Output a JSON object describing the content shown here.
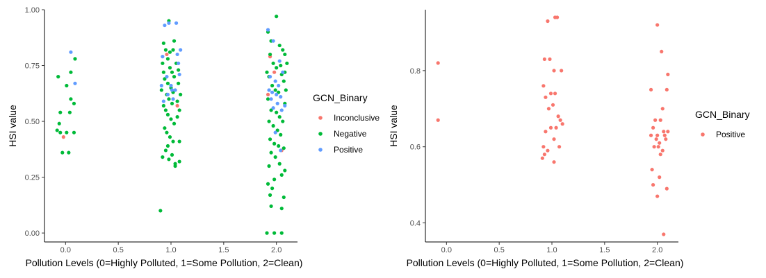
{
  "chart_data": [
    {
      "type": "scatter",
      "title": "",
      "xlabel": "Pollution Levels (0=Highly Polluted, 1=Some Pollution, 2=Clean)",
      "ylabel": "HSI value",
      "xlim": [
        -0.2,
        2.2
      ],
      "ylim": [
        -0.04,
        1.0
      ],
      "x_ticks": [
        "0.0",
        "0.5",
        "1.0",
        "1.5",
        "2.0"
      ],
      "y_ticks": [
        "0.00",
        "0.25",
        "0.50",
        "0.75",
        "1.00"
      ],
      "grid": false,
      "legend": {
        "title": "GCN_Binary",
        "position": "right",
        "entries": [
          {
            "label": "Inconclusive",
            "color": "#F8766D"
          },
          {
            "label": "Negative",
            "color": "#00BA38"
          },
          {
            "label": "Positive",
            "color": "#619CFF"
          }
        ]
      },
      "series": [
        {
          "name": "Inconclusive",
          "color": "#F8766D",
          "points": [
            [
              -0.02,
              0.43
            ],
            [
              0.96,
              0.8
            ],
            [
              1.06,
              0.57
            ],
            [
              1.92,
              0.62
            ],
            [
              1.98,
              0.72
            ],
            [
              2.05,
              0.37
            ],
            [
              1.94,
              0.79
            ]
          ]
        },
        {
          "name": "Negative",
          "color": "#00BA38",
          "points": [
            [
              -0.08,
              0.46
            ],
            [
              -0.06,
              0.49
            ],
            [
              -0.05,
              0.54
            ],
            [
              -0.03,
              0.36
            ],
            [
              -0.07,
              0.7
            ],
            [
              0.01,
              0.66
            ],
            [
              0.04,
              0.54
            ],
            [
              0.05,
              0.72
            ],
            [
              0.03,
              0.36
            ],
            [
              0.08,
              0.45
            ],
            [
              0.08,
              0.58
            ],
            [
              0.09,
              0.78
            ],
            [
              -0.05,
              0.45
            ],
            [
              0.01,
              0.45
            ],
            [
              0.05,
              0.6
            ],
            [
              0.93,
              0.85
            ],
            [
              0.95,
              0.82
            ],
            [
              0.97,
              0.78
            ],
            [
              0.92,
              0.76
            ],
            [
              0.99,
              0.74
            ],
            [
              1.01,
              0.72
            ],
            [
              1.03,
              0.7
            ],
            [
              0.94,
              0.69
            ],
            [
              0.97,
              0.67
            ],
            [
              1.0,
              0.65
            ],
            [
              1.02,
              0.63
            ],
            [
              0.96,
              0.62
            ],
            [
              0.98,
              0.6
            ],
            [
              1.01,
              0.58
            ],
            [
              0.93,
              0.57
            ],
            [
              0.95,
              0.55
            ],
            [
              0.97,
              0.53
            ],
            [
              1.0,
              0.51
            ],
            [
              1.03,
              0.49
            ],
            [
              0.94,
              0.47
            ],
            [
              0.96,
              0.45
            ],
            [
              0.99,
              0.43
            ],
            [
              1.02,
              0.41
            ],
            [
              0.97,
              0.39
            ],
            [
              0.95,
              0.37
            ],
            [
              1.01,
              0.35
            ],
            [
              0.98,
              0.33
            ],
            [
              0.92,
              0.34
            ],
            [
              1.04,
              0.31
            ],
            [
              1.08,
              0.32
            ],
            [
              1.07,
              0.67
            ],
            [
              1.09,
              0.62
            ],
            [
              1.05,
              0.76
            ],
            [
              1.06,
              0.52
            ],
            [
              1.08,
              0.41
            ],
            [
              1.03,
              0.86
            ],
            [
              1.02,
              0.82
            ],
            [
              0.9,
              0.1
            ],
            [
              0.98,
              0.95
            ],
            [
              1.04,
              0.3
            ],
            [
              1.06,
              0.59
            ],
            [
              1.08,
              0.55
            ],
            [
              0.91,
              0.64
            ],
            [
              0.93,
              0.72
            ],
            [
              1.07,
              0.73
            ],
            [
              0.99,
              0.81
            ],
            [
              1.92,
              0.9
            ],
            [
              1.95,
              0.86
            ],
            [
              2.0,
              0.97
            ],
            [
              2.03,
              0.84
            ],
            [
              1.94,
              0.8
            ],
            [
              2.06,
              0.82
            ],
            [
              2.08,
              0.8
            ],
            [
              1.97,
              0.76
            ],
            [
              2.0,
              0.74
            ],
            [
              2.04,
              0.75
            ],
            [
              1.91,
              0.72
            ],
            [
              1.93,
              0.7
            ],
            [
              2.05,
              0.71
            ],
            [
              2.07,
              0.68
            ],
            [
              1.96,
              0.66
            ],
            [
              1.99,
              0.64
            ],
            [
              2.02,
              0.63
            ],
            [
              1.92,
              0.6
            ],
            [
              2.08,
              0.58
            ],
            [
              1.95,
              0.55
            ],
            [
              2.0,
              0.54
            ],
            [
              2.03,
              0.52
            ],
            [
              1.93,
              0.5
            ],
            [
              2.06,
              0.5
            ],
            [
              1.97,
              0.48
            ],
            [
              2.01,
              0.46
            ],
            [
              2.04,
              0.44
            ],
            [
              1.94,
              0.42
            ],
            [
              1.98,
              0.4
            ],
            [
              2.02,
              0.39
            ],
            [
              2.07,
              0.38
            ],
            [
              1.95,
              0.36
            ],
            [
              1.99,
              0.34
            ],
            [
              2.03,
              0.31
            ],
            [
              1.93,
              0.3
            ],
            [
              2.08,
              0.28
            ],
            [
              2.05,
              0.26
            ],
            [
              1.98,
              0.24
            ],
            [
              1.92,
              0.22
            ],
            [
              1.96,
              0.2
            ],
            [
              1.94,
              0.17
            ],
            [
              2.07,
              0.16
            ],
            [
              1.95,
              0.12
            ],
            [
              2.05,
              0.11
            ],
            [
              2.09,
              0.64
            ],
            [
              2.1,
              0.76
            ],
            [
              2.08,
              0.72
            ],
            [
              1.91,
              0.0
            ],
            [
              1.98,
              0.0
            ],
            [
              2.05,
              0.0
            ]
          ]
        },
        {
          "name": "Positive",
          "color": "#619CFF",
          "points": [
            [
              0.05,
              0.81
            ],
            [
              0.09,
              0.67
            ],
            [
              0.94,
              0.93
            ],
            [
              0.98,
              0.94
            ],
            [
              1.05,
              0.94
            ],
            [
              1.09,
              0.82
            ],
            [
              1.06,
              0.8
            ],
            [
              0.92,
              0.79
            ],
            [
              0.96,
              0.7
            ],
            [
              1.0,
              0.66
            ],
            [
              1.04,
              0.64
            ],
            [
              0.97,
              0.62
            ],
            [
              1.02,
              0.6
            ],
            [
              0.93,
              0.59
            ],
            [
              1.08,
              0.71
            ],
            [
              1.07,
              0.76
            ],
            [
              0.91,
              0.66
            ],
            [
              1.01,
              0.64
            ],
            [
              1.92,
              0.91
            ],
            [
              1.97,
              0.86
            ],
            [
              2.03,
              0.77
            ],
            [
              2.06,
              0.72
            ],
            [
              1.94,
              0.7
            ],
            [
              1.99,
              0.68
            ],
            [
              2.02,
              0.66
            ],
            [
              1.93,
              0.64
            ],
            [
              1.96,
              0.63
            ],
            [
              2.0,
              0.62
            ],
            [
              2.04,
              0.61
            ],
            [
              1.95,
              0.6
            ],
            [
              2.01,
              0.58
            ],
            [
              2.08,
              0.57
            ],
            [
              1.97,
              0.56
            ],
            [
              2.05,
              0.55
            ],
            [
              1.99,
              0.45
            ],
            [
              2.04,
              0.37
            ]
          ]
        }
      ]
    },
    {
      "type": "scatter",
      "title": "",
      "xlabel": "Pollution Levels (0=Highly Polluted, 1=Some Pollution, 2=Clean)",
      "ylabel": "HSI value",
      "xlim": [
        -0.2,
        2.2
      ],
      "ylim": [
        0.35,
        0.96
      ],
      "x_ticks": [
        "0.0",
        "0.5",
        "1.0",
        "1.5",
        "2.0"
      ],
      "y_ticks": [
        "0.4",
        "0.6",
        "0.8"
      ],
      "grid": false,
      "legend": {
        "title": "GCN_Binary",
        "position": "right",
        "entries": [
          {
            "label": "Positive",
            "color": "#F8766D"
          }
        ]
      },
      "series": [
        {
          "name": "Positive",
          "color": "#F8766D",
          "points": [
            [
              -0.08,
              0.82
            ],
            [
              -0.08,
              0.67
            ],
            [
              0.96,
              0.93
            ],
            [
              1.03,
              0.94
            ],
            [
              1.05,
              0.94
            ],
            [
              0.93,
              0.83
            ],
            [
              0.98,
              0.83
            ],
            [
              1.02,
              0.8
            ],
            [
              1.09,
              0.8
            ],
            [
              0.92,
              0.76
            ],
            [
              0.99,
              0.74
            ],
            [
              1.03,
              0.74
            ],
            [
              0.94,
              0.73
            ],
            [
              0.97,
              0.7
            ],
            [
              1.01,
              0.71
            ],
            [
              1.06,
              0.68
            ],
            [
              1.08,
              0.67
            ],
            [
              1.04,
              0.65
            ],
            [
              1.1,
              0.66
            ],
            [
              0.99,
              0.65
            ],
            [
              0.94,
              0.64
            ],
            [
              1.02,
              0.62
            ],
            [
              0.92,
              0.6
            ],
            [
              1.07,
              0.6
            ],
            [
              0.96,
              0.59
            ],
            [
              0.93,
              0.58
            ],
            [
              0.91,
              0.57
            ],
            [
              1.02,
              0.56
            ],
            [
              2.0,
              0.92
            ],
            [
              2.04,
              0.85
            ],
            [
              2.1,
              0.79
            ],
            [
              1.94,
              0.75
            ],
            [
              2.09,
              0.75
            ],
            [
              2.05,
              0.7
            ],
            [
              1.98,
              0.67
            ],
            [
              2.03,
              0.67
            ],
            [
              1.96,
              0.65
            ],
            [
              2.06,
              0.64
            ],
            [
              2.1,
              0.64
            ],
            [
              1.94,
              0.63
            ],
            [
              2.0,
              0.63
            ],
            [
              2.07,
              0.63
            ],
            [
              1.99,
              0.62
            ],
            [
              2.02,
              0.61
            ],
            [
              2.08,
              0.62
            ],
            [
              1.97,
              0.6
            ],
            [
              2.01,
              0.6
            ],
            [
              2.05,
              0.59
            ],
            [
              2.03,
              0.58
            ],
            [
              1.95,
              0.54
            ],
            [
              2.02,
              0.52
            ],
            [
              2.09,
              0.49
            ],
            [
              1.96,
              0.5
            ],
            [
              2.0,
              0.47
            ],
            [
              2.06,
              0.37
            ]
          ]
        }
      ]
    }
  ]
}
